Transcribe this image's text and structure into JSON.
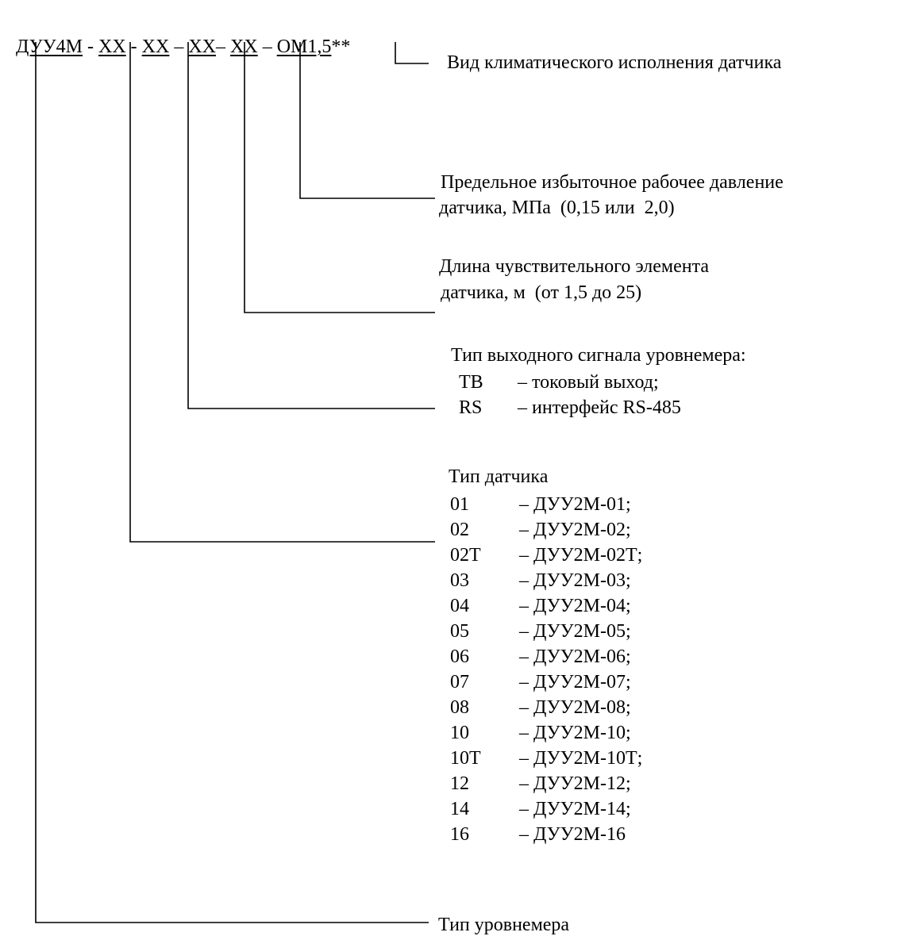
{
  "header": {
    "parts": [
      "ДУУ4М",
      " - ",
      "ХХ",
      " - ",
      "ХХ",
      " – ",
      "ХХ",
      "– ",
      "ХХ",
      " – ",
      "ОМ1,5",
      "**"
    ]
  },
  "callouts": {
    "climate": "Вид климатического исполнения датчика",
    "pressure": [
      "Предельное избыточное рабочее давление",
      "датчика, МПа  (0,15 или  2,0)"
    ],
    "length": [
      "Длина чувствительного элемента",
      "датчика, м  (от 1,5 до 25)"
    ],
    "signal": {
      "title": "Тип выходного сигнала уровнемера:",
      "items": [
        {
          "code": "ТВ",
          "desc": "– токовый выход;"
        },
        {
          "code": "RS",
          "desc": "– интерфейс RS-485"
        }
      ]
    },
    "sensor": {
      "title": "Тип датчика",
      "items": [
        {
          "code": "01",
          "desc": "– ДУУ2М-01;"
        },
        {
          "code": "02",
          "desc": "– ДУУ2М-02;"
        },
        {
          "code": "02Т",
          "desc": "– ДУУ2М-02Т;"
        },
        {
          "code": "03",
          "desc": "– ДУУ2М-03;"
        },
        {
          "code": "04",
          "desc": "– ДУУ2М-04;"
        },
        {
          "code": "05",
          "desc": "– ДУУ2М-05;"
        },
        {
          "code": "06",
          "desc": "– ДУУ2М-06;"
        },
        {
          "code": "07",
          "desc": "– ДУУ2М-07;"
        },
        {
          "code": "08",
          "desc": "– ДУУ2М-08;"
        },
        {
          "code": "10",
          "desc": "– ДУУ2М-10;"
        },
        {
          "code": "10Т",
          "desc": "– ДУУ2М-10Т;"
        },
        {
          "code": "12",
          "desc": "– ДУУ2М-12;"
        },
        {
          "code": "14",
          "desc": "– ДУУ2М-14;"
        },
        {
          "code": "16",
          "desc": "– ДУУ2М-16"
        }
      ]
    },
    "gauge_type": "Тип уровнемера"
  }
}
